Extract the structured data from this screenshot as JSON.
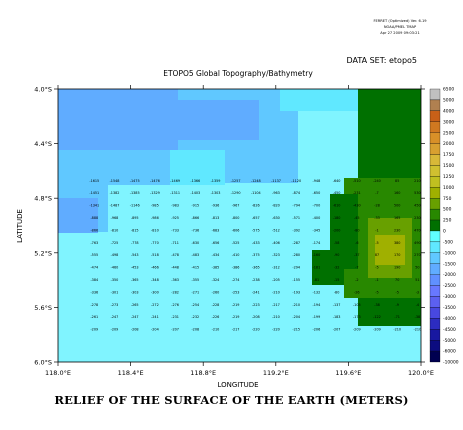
{
  "header": {
    "stamp_lines": [
      "FERRET (Optimized) Ver. 6.19",
      "NOAA/PMEL TMAP",
      "Apr 27 2009 09:03:21"
    ],
    "dataset_label": "DATA SET: etopo5"
  },
  "plot": {
    "title": "ETOPO5 Global Topography/Bathymetry",
    "xlabel": "LONGITUDE",
    "ylabel": "LATITUDE",
    "x_ticks": [
      "118.0°E",
      "118.4°E",
      "118.8°E",
      "119.2°E",
      "119.6°E",
      "120.0°E"
    ],
    "y_ticks": [
      "4.0°S",
      "4.4°S",
      "4.8°S",
      "5.2°S",
      "5.6°S",
      "6.0°S"
    ]
  },
  "colorbar": {
    "levels": [
      "6500",
      "5000",
      "4000",
      "3000",
      "2500",
      "2000",
      "1750",
      "1500",
      "1250",
      "1000",
      "750",
      "500",
      "250",
      "0",
      "-500",
      "-1000",
      "-1500",
      "-2000",
      "-2500",
      "-3000",
      "-3500",
      "-4000",
      "-4500",
      "-5000",
      "-6000",
      "-10000"
    ],
    "colors": [
      "#c0c0c0",
      "#b08050",
      "#c86018",
      "#d07820",
      "#d89028",
      "#d8a030",
      "#d8b838",
      "#d0c030",
      "#c0c020",
      "#a0b000",
      "#68a000",
      "#288800",
      "#007000",
      "#60ffff",
      "#60e8ff",
      "#60c8ff",
      "#60acff",
      "#6090ff",
      "#6878ff",
      "#5c60f0",
      "#4848e0",
      "#2c2cc0",
      "#1818a0",
      "#0c0c80",
      "#000050"
    ]
  },
  "caption": "RELIEF OF THE SURFACE OF THE EARTH (METERS)",
  "chart_data": {
    "type": "heatmap",
    "title": "ETOPO5 Global Topography/Bathymetry",
    "xlabel": "LONGITUDE",
    "ylabel": "LATITUDE",
    "xlim": [
      118.0,
      120.0
    ],
    "ylim": [
      -6.0,
      -4.0
    ],
    "value_rows": [
      [
        "-1615",
        "-1548",
        "-1475",
        "-1476",
        "-1469",
        "-1366",
        "-1359",
        "-1257",
        "-1248",
        "-1137",
        "-1120",
        "-948",
        "-640",
        "-510",
        "-240",
        "85",
        "210"
      ],
      [
        "-1451",
        "-1382",
        "-1385",
        "-1329",
        "-1311",
        "-1403",
        "-1303",
        "-1290",
        "-1104",
        "-963",
        "-874",
        "-650",
        "-450",
        "-231",
        "-7",
        "160",
        "530"
      ],
      [
        "-1341",
        "-1487",
        "-1146",
        "-985",
        "-983",
        "-915",
        "-936",
        "-967",
        "-826",
        "-820",
        "-794",
        "-700",
        "-610",
        "-430",
        "-28",
        "500",
        "450"
      ],
      [
        "-888",
        "-968",
        "-895",
        "-986",
        "-925",
        "-866",
        "-813",
        "-800",
        "-657",
        "-630",
        "-571",
        "-400",
        "-180",
        "-45",
        "-33",
        "165",
        "230"
      ],
      [
        "-866",
        "-810",
        "-815",
        "-810",
        "-733",
        "-736",
        "-683",
        "-606",
        "-575",
        "-512",
        "-392",
        "-345",
        "-200",
        "-80",
        "-1",
        "230",
        "470"
      ],
      [
        "-763",
        "-725",
        "-778",
        "-770",
        "-711",
        "-630",
        "-656",
        "-525",
        "-433",
        "-406",
        "-287",
        "-174",
        "-58",
        "-6",
        "-5",
        "380",
        "490"
      ],
      [
        "-555",
        "-498",
        "-543",
        "-518",
        "-478",
        "-483",
        "-434",
        "-410",
        "-375",
        "-323",
        "-280",
        "-160",
        "-90",
        "-37",
        "87",
        "170",
        "270"
      ],
      [
        "-474",
        "-460",
        "-453",
        "-466",
        "-448",
        "-415",
        "-385",
        "-386",
        "-365",
        "-312",
        "-294",
        "-181",
        "-32",
        "-7",
        "-5",
        "190",
        "50"
      ],
      [
        "-384",
        "-350",
        "-365",
        "-348",
        "-363",
        "-355",
        "-324",
        "-274",
        "-238",
        "-205",
        "-155",
        "-81",
        "-15",
        "-2",
        "-1",
        "70",
        "51"
      ],
      [
        "-336",
        "-301",
        "-303",
        "-300",
        "-282",
        "-271",
        "-260",
        "-253",
        "-241",
        "-210",
        "-193",
        "-132",
        "-80",
        "-26",
        "-5",
        "-5",
        "-3"
      ],
      [
        "-278",
        "-273",
        "-265",
        "-272",
        "-276",
        "-254",
        "-228",
        "-219",
        "-223",
        "-217",
        "-210",
        "-194",
        "-137",
        "-105",
        "-38",
        "-9",
        "-4"
      ],
      [
        "-261",
        "-247",
        "-247",
        "-241",
        "-231",
        "-232",
        "-226",
        "-219",
        "-208",
        "-210",
        "-204",
        "-199",
        "-183",
        "-173",
        "-122",
        "-71",
        "-38"
      ],
      [
        "-209",
        "-209",
        "-208",
        "-204",
        "-207",
        "-208",
        "-210",
        "-217",
        "-220",
        "-220",
        "-215",
        "-206",
        "-207",
        "-209",
        "-209",
        "-210",
        "-210"
      ]
    ]
  }
}
